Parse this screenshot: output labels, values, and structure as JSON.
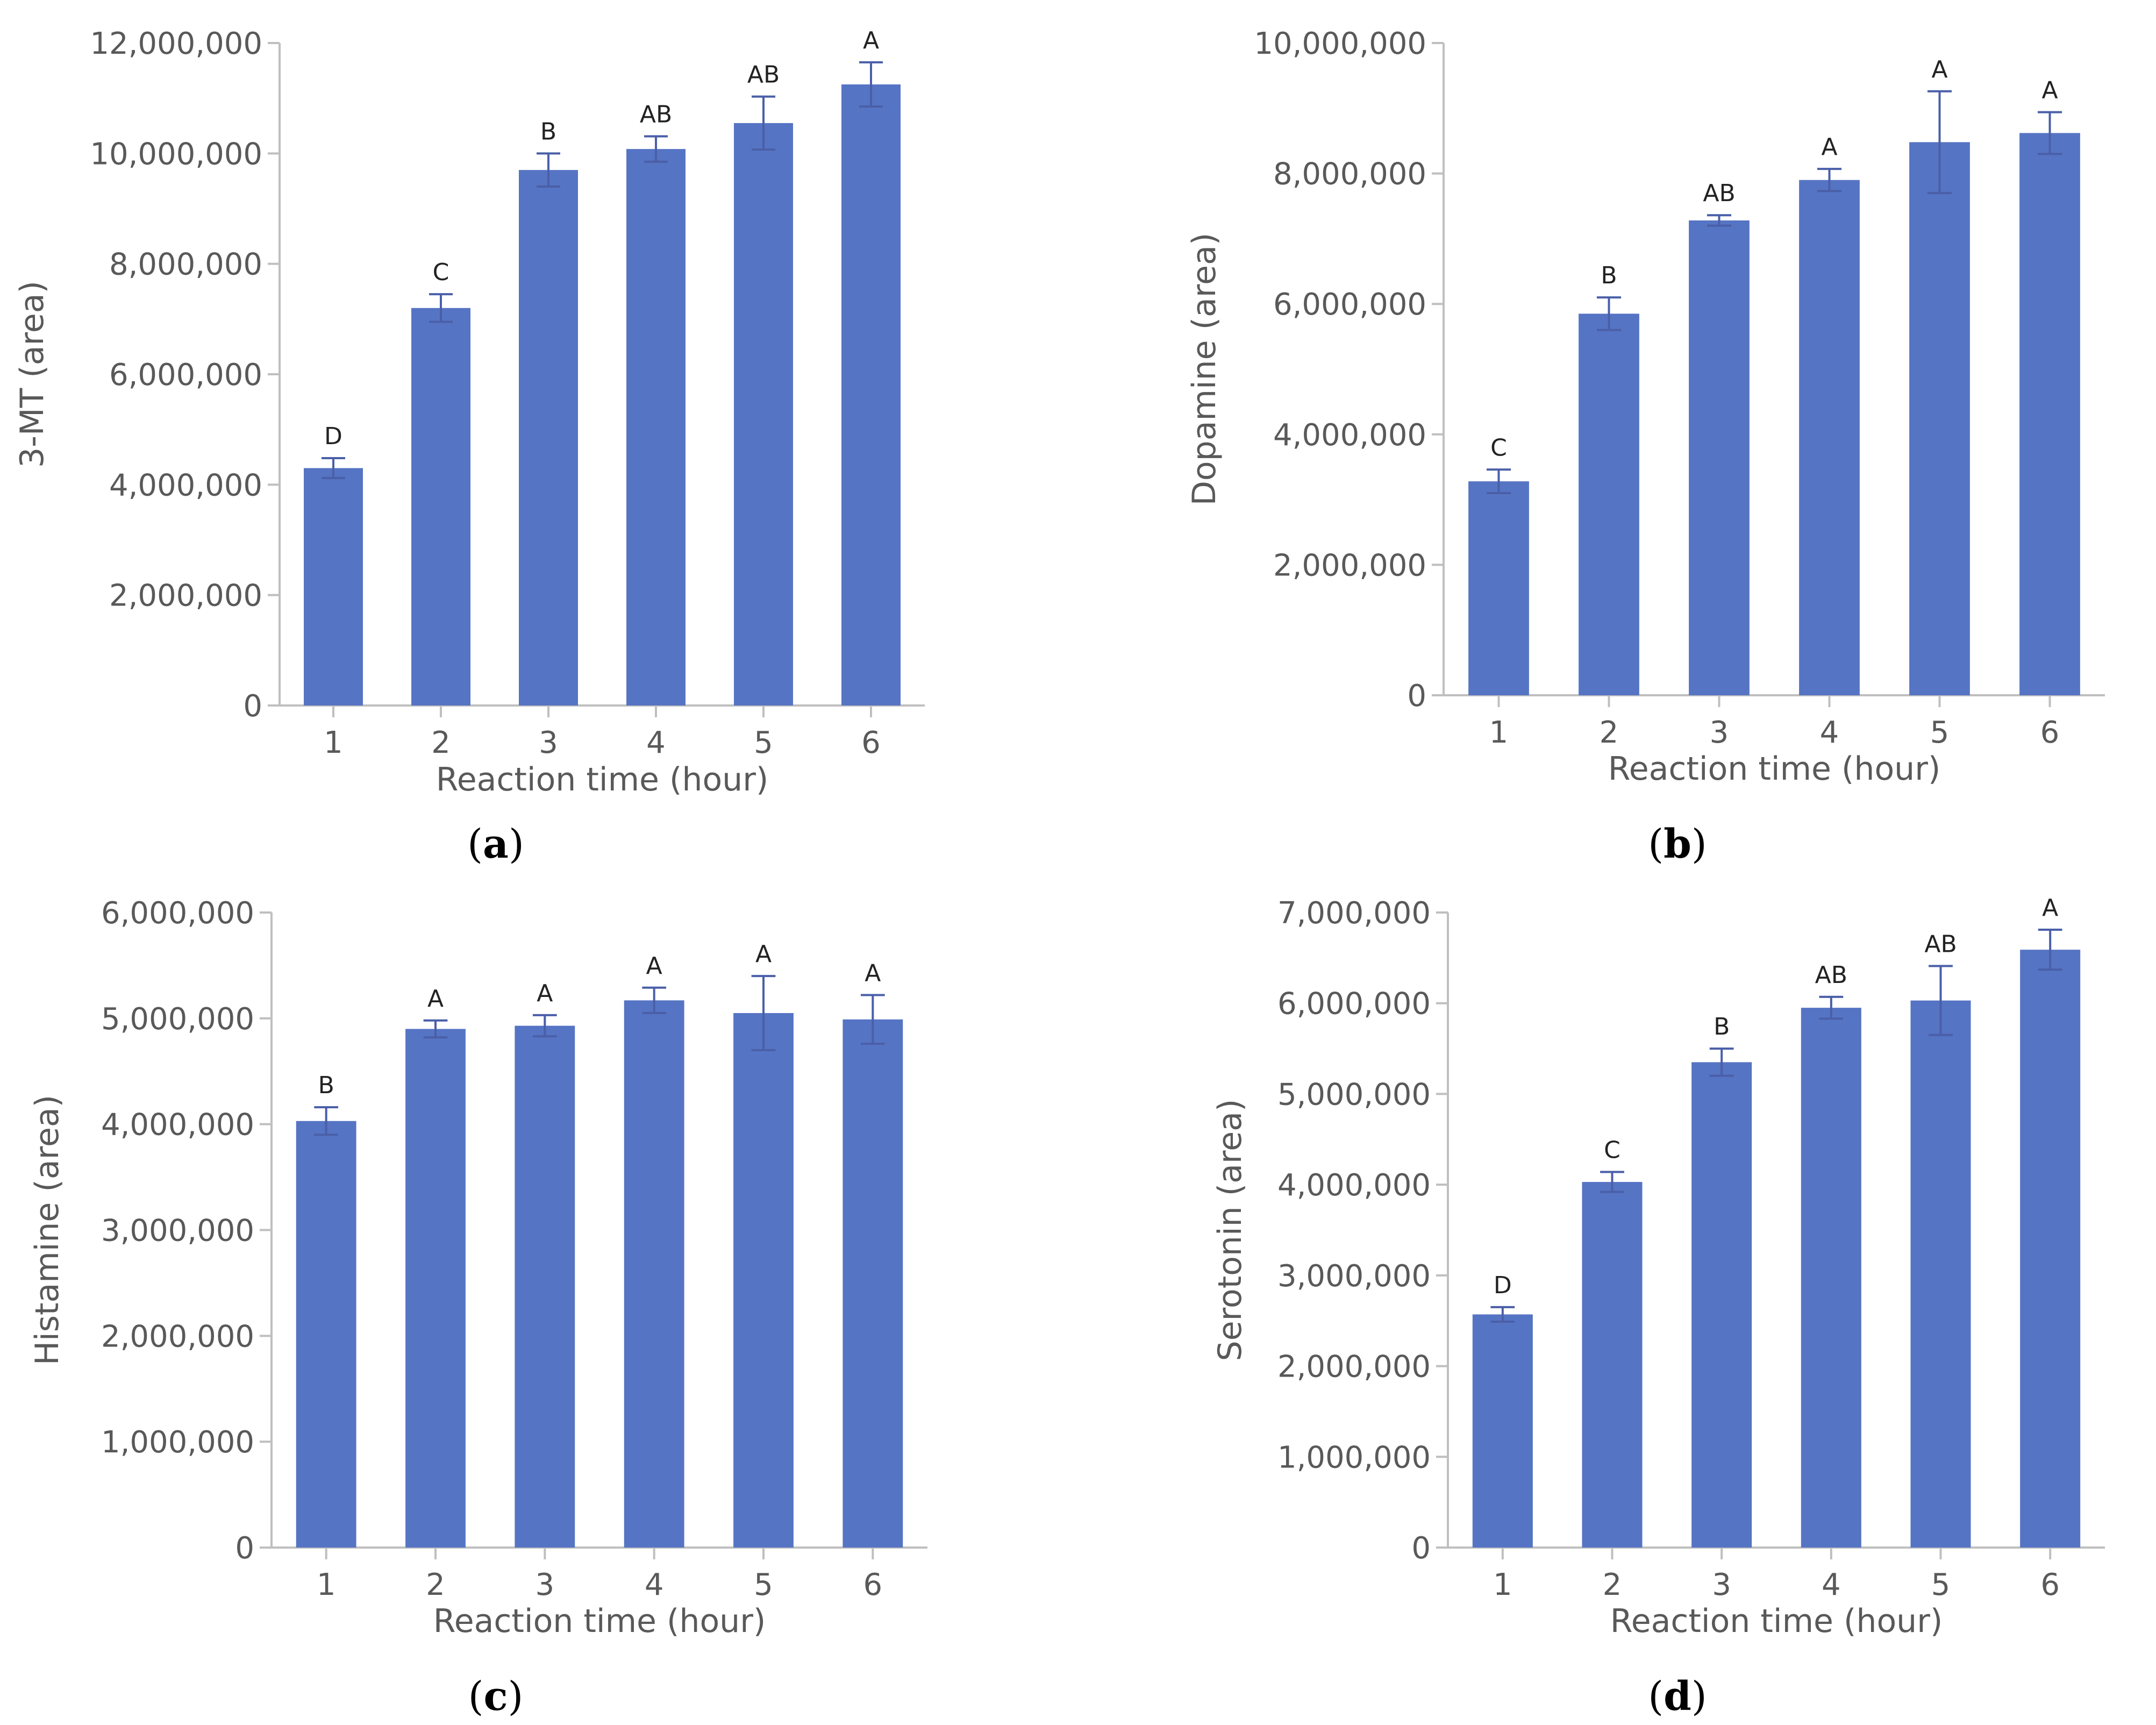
{
  "figure": {
    "bar_color": "#5674C4",
    "error_color": "#4A5FA8",
    "axis_color": "#BFBFBF",
    "text_color": "#595959"
  },
  "chart_data": [
    {
      "id": "a",
      "type": "bar",
      "panel_label": "a",
      "caption_open": "(",
      "caption_close": ")",
      "categories": [
        "1",
        "2",
        "3",
        "4",
        "5",
        "6"
      ],
      "values": [
        4300000,
        7200000,
        9700000,
        10080000,
        10550000,
        11250000
      ],
      "errors": [
        180000,
        250000,
        300000,
        230000,
        480000,
        400000
      ],
      "significance": [
        "D",
        "C",
        "B",
        "AB",
        "AB",
        "A"
      ],
      "ylabel": "3-MT (area)",
      "xlabel": "Reaction time (hour)",
      "ylim": [
        0,
        12000000
      ],
      "yticks": [
        0,
        2000000,
        4000000,
        6000000,
        8000000,
        10000000,
        12000000
      ],
      "ytick_labels": [
        "0",
        "2,000,000",
        "4,000,000",
        "6,000,000",
        "8,000,000",
        "10,000,000",
        "12,000,000"
      ]
    },
    {
      "id": "b",
      "type": "bar",
      "panel_label": "b",
      "caption_open": "(",
      "caption_close": ")",
      "categories": [
        "1",
        "2",
        "3",
        "4",
        "5",
        "6"
      ],
      "values": [
        3280000,
        5850000,
        7280000,
        7900000,
        8480000,
        8620000
      ],
      "errors": [
        180000,
        250000,
        80000,
        170000,
        780000,
        320000
      ],
      "significance": [
        "C",
        "B",
        "AB",
        "A",
        "A",
        "A"
      ],
      "ylabel": "Dopamine (area)",
      "xlabel": "Reaction time (hour)",
      "ylim": [
        0,
        10000000
      ],
      "yticks": [
        0,
        2000000,
        4000000,
        6000000,
        8000000,
        10000000
      ],
      "ytick_labels": [
        "0",
        "2,000,000",
        "4,000,000",
        "6,000,000",
        "8,000,000",
        "10,000,000"
      ]
    },
    {
      "id": "c",
      "type": "bar",
      "panel_label": "c",
      "caption_open": "(",
      "caption_close": ")",
      "categories": [
        "1",
        "2",
        "3",
        "4",
        "5",
        "6"
      ],
      "values": [
        4030000,
        4900000,
        4930000,
        5170000,
        5050000,
        4990000
      ],
      "errors": [
        130000,
        80000,
        100000,
        120000,
        350000,
        230000
      ],
      "significance": [
        "B",
        "A",
        "A",
        "A",
        "A",
        "A"
      ],
      "ylabel": "Histamine (area)",
      "xlabel": "Reaction time (hour)",
      "ylim": [
        0,
        6000000
      ],
      "yticks": [
        0,
        1000000,
        2000000,
        3000000,
        4000000,
        5000000,
        6000000
      ],
      "ytick_labels": [
        "0",
        "1,000,000",
        "2,000,000",
        "3,000,000",
        "4,000,000",
        "5,000,000",
        "6,000,000"
      ]
    },
    {
      "id": "d",
      "type": "bar",
      "panel_label": "d",
      "caption_open": "(",
      "caption_close": ")",
      "categories": [
        "1",
        "2",
        "3",
        "4",
        "5",
        "6"
      ],
      "values": [
        2570000,
        4030000,
        5350000,
        5950000,
        6030000,
        6590000
      ],
      "errors": [
        80000,
        110000,
        150000,
        120000,
        380000,
        220000
      ],
      "significance": [
        "D",
        "C",
        "B",
        "AB",
        "AB",
        "A"
      ],
      "ylabel": "Serotonin (area)",
      "xlabel": "Reaction time (hour)",
      "ylim": [
        0,
        7000000
      ],
      "yticks": [
        0,
        1000000,
        2000000,
        3000000,
        4000000,
        5000000,
        6000000,
        7000000
      ],
      "ytick_labels": [
        "0",
        "1,000,000",
        "2,000,000",
        "3,000,000",
        "4,000,000",
        "5,000,000",
        "6,000,000",
        "7,000,000"
      ]
    }
  ]
}
